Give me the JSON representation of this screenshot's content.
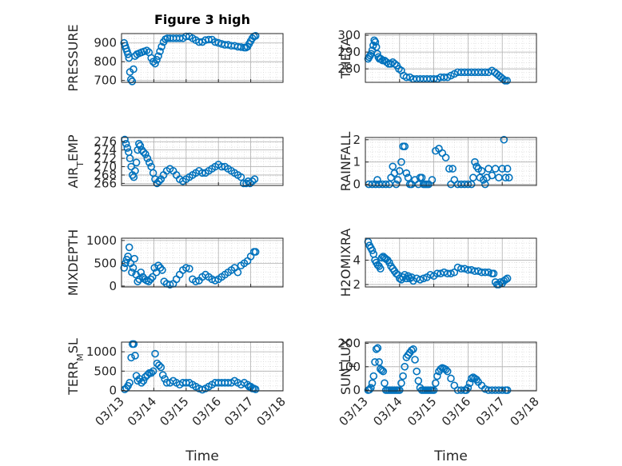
{
  "figure": {
    "title": "Figure 3 high",
    "xlabel_left": "Time",
    "xlabel_right": "Time",
    "x_ticks": [
      "03/13",
      "03/14",
      "03/15",
      "03/16",
      "03/17",
      "03/18"
    ],
    "marker_color": "#0072BD",
    "grid_color": "#b0b0b0"
  },
  "chart_data": [
    {
      "type": "scatter",
      "ylabel": "PRESSURE",
      "ylim": [
        690,
        950
      ],
      "yticks": [
        "700",
        "800",
        "900"
      ],
      "ytick_values": [
        700,
        800,
        900
      ],
      "xlim": [
        0,
        5
      ],
      "grid": true,
      "x": [
        0.08,
        0.11,
        0.14,
        0.17,
        0.2,
        0.23,
        0.26,
        0.29,
        0.33,
        0.37,
        0.42,
        0.48,
        0.55,
        0.62,
        0.7,
        0.78,
        0.85,
        0.92,
        0.98,
        1.04,
        1.09,
        1.14,
        1.19,
        1.24,
        1.3,
        1.36,
        1.42,
        1.5,
        1.6,
        1.7,
        1.8,
        1.9,
        2.0,
        2.1,
        2.2,
        2.3,
        2.4,
        2.5,
        2.6,
        2.7,
        2.8,
        2.9,
        3.0,
        3.1,
        3.2,
        3.3,
        3.4,
        3.5,
        3.6,
        3.7,
        3.8,
        3.85,
        3.9,
        3.95,
        4.0,
        4.05,
        4.1,
        4.15
      ],
      "y": [
        900,
        885,
        870,
        855,
        840,
        820,
        745,
        705,
        695,
        760,
        830,
        840,
        845,
        850,
        855,
        860,
        850,
        820,
        800,
        790,
        810,
        830,
        855,
        880,
        905,
        920,
        925,
        925,
        925,
        925,
        925,
        925,
        935,
        935,
        925,
        915,
        905,
        905,
        915,
        918,
        918,
        905,
        900,
        895,
        890,
        890,
        885,
        885,
        880,
        878,
        875,
        875,
        880,
        895,
        910,
        925,
        935,
        938
      ]
    },
    {
      "type": "scatter",
      "ylabel": "THETA",
      "ylim": [
        272,
        301
      ],
      "yticks": [
        "280",
        "290",
        "300"
      ],
      "ytick_values": [
        280,
        290,
        300
      ],
      "xlim": [
        0,
        5
      ],
      "grid": true,
      "x": [
        0.08,
        0.11,
        0.14,
        0.17,
        0.2,
        0.23,
        0.26,
        0.29,
        0.32,
        0.35,
        0.38,
        0.41,
        0.45,
        0.5,
        0.56,
        0.62,
        0.68,
        0.74,
        0.8,
        0.86,
        0.92,
        0.98,
        1.05,
        1.12,
        1.2,
        1.3,
        1.4,
        1.5,
        1.6,
        1.7,
        1.8,
        1.9,
        2.0,
        2.1,
        2.2,
        2.3,
        2.4,
        2.5,
        2.6,
        2.7,
        2.8,
        2.9,
        3.0,
        3.1,
        3.2,
        3.3,
        3.4,
        3.5,
        3.6,
        3.7,
        3.78,
        3.84,
        3.9,
        3.96,
        4.02,
        4.08,
        4.14
      ],
      "y": [
        286,
        287,
        288,
        289,
        291,
        294,
        297,
        296,
        293,
        289,
        287,
        286,
        286,
        285,
        285,
        284,
        283,
        283,
        284,
        283,
        282,
        280,
        279,
        276,
        275,
        275,
        274,
        274,
        274,
        274,
        274,
        274,
        274,
        274,
        275,
        275,
        275,
        276,
        277,
        278,
        278,
        278,
        278,
        278,
        278,
        278,
        278,
        278,
        278,
        279,
        278,
        277,
        276,
        275,
        274,
        273,
        273
      ]
    },
    {
      "type": "scatter",
      "ylabel": "AIR_TEMP",
      "ylim": [
        265.5,
        277
      ],
      "yticks": [
        "266",
        "268",
        "270",
        "272",
        "274",
        "276"
      ],
      "ytick_values": [
        266,
        268,
        270,
        272,
        274,
        276
      ],
      "xlim": [
        0,
        5
      ],
      "grid": true,
      "x": [
        0.1,
        0.14,
        0.18,
        0.22,
        0.26,
        0.3,
        0.34,
        0.38,
        0.42,
        0.46,
        0.5,
        0.54,
        0.58,
        0.63,
        0.68,
        0.74,
        0.8,
        0.86,
        0.92,
        0.98,
        1.04,
        1.1,
        1.16,
        1.22,
        1.3,
        1.4,
        1.5,
        1.6,
        1.7,
        1.8,
        1.9,
        2.0,
        2.1,
        2.2,
        2.3,
        2.4,
        2.5,
        2.6,
        2.7,
        2.8,
        2.9,
        3.0,
        3.1,
        3.2,
        3.3,
        3.4,
        3.5,
        3.6,
        3.7,
        3.78,
        3.86,
        3.92,
        3.98,
        4.05,
        4.12
      ],
      "y": [
        276.5,
        275.5,
        274.5,
        273.5,
        272,
        270,
        268,
        267.5,
        269,
        271,
        274,
        275.5,
        275,
        274,
        273.5,
        273,
        272,
        271,
        270,
        268.5,
        267,
        266,
        266.5,
        267,
        268,
        269,
        269.5,
        269,
        268,
        267,
        266.5,
        267,
        267.5,
        268,
        268.5,
        269,
        268.5,
        268.5,
        269,
        269.5,
        270,
        270.5,
        270,
        270,
        269.5,
        269,
        268.5,
        268,
        267.5,
        266,
        266,
        266.5,
        266,
        266.5,
        267
      ]
    },
    {
      "type": "scatter",
      "ylabel": "RAINFALL",
      "ylim": [
        -0.05,
        2.1
      ],
      "yticks": [
        "0",
        "1",
        "2"
      ],
      "ytick_values": [
        0,
        1,
        2
      ],
      "xlim": [
        0,
        5
      ],
      "grid": true,
      "x": [
        0.1,
        0.2,
        0.3,
        0.35,
        0.4,
        0.5,
        0.6,
        0.7,
        0.75,
        0.8,
        0.85,
        0.9,
        0.95,
        1.0,
        1.05,
        1.1,
        1.15,
        1.2,
        1.25,
        1.3,
        1.35,
        1.45,
        1.55,
        1.6,
        1.65,
        1.7,
        1.75,
        1.8,
        1.85,
        1.95,
        2.05,
        2.15,
        2.25,
        2.35,
        2.45,
        2.5,
        2.55,
        2.6,
        2.7,
        2.8,
        2.9,
        3.0,
        3.1,
        3.15,
        3.2,
        3.25,
        3.3,
        3.35,
        3.4,
        3.45,
        3.5,
        3.55,
        3.6,
        3.7,
        3.8,
        3.9,
        4.0,
        4.05,
        4.1,
        4.15,
        4.2
      ],
      "y": [
        0,
        0,
        0,
        0.2,
        0,
        0,
        0,
        0,
        0.3,
        0.8,
        0.5,
        0,
        0.2,
        0.6,
        1.0,
        1.7,
        1.7,
        0.5,
        0.3,
        0,
        0,
        0.2,
        0,
        0.3,
        0.3,
        0,
        0,
        0,
        0,
        0.2,
        1.5,
        1.6,
        1.4,
        1.2,
        0.7,
        0,
        0.7,
        0.2,
        0,
        0,
        0,
        0,
        0,
        0.3,
        1.0,
        0.8,
        0.7,
        0.3,
        0.6,
        0.2,
        0,
        0.3,
        0.7,
        0.4,
        0.7,
        0.3,
        0.7,
        2.0,
        0.3,
        0.7,
        0.3
      ]
    },
    {
      "type": "scatter",
      "ylabel": "MIXDEPTH",
      "ylim": [
        -20,
        1050
      ],
      "yticks": [
        "0",
        "500",
        "1000"
      ],
      "ytick_values": [
        0,
        500,
        1000
      ],
      "xlim": [
        0,
        5
      ],
      "grid": true,
      "x": [
        0.08,
        0.12,
        0.16,
        0.2,
        0.24,
        0.28,
        0.32,
        0.36,
        0.4,
        0.45,
        0.5,
        0.55,
        0.6,
        0.66,
        0.72,
        0.78,
        0.84,
        0.9,
        0.96,
        1.02,
        1.08,
        1.14,
        1.2,
        1.26,
        1.32,
        1.4,
        1.5,
        1.6,
        1.7,
        1.8,
        1.9,
        2.0,
        2.1,
        2.2,
        2.3,
        2.4,
        2.5,
        2.6,
        2.7,
        2.8,
        2.9,
        3.0,
        3.1,
        3.2,
        3.3,
        3.4,
        3.5,
        3.6,
        3.7,
        3.8,
        3.9,
        4.0,
        4.1,
        4.15
      ],
      "y": [
        400,
        500,
        580,
        650,
        850,
        500,
        300,
        400,
        600,
        250,
        100,
        150,
        300,
        200,
        150,
        120,
        100,
        150,
        200,
        400,
        300,
        450,
        400,
        350,
        100,
        50,
        30,
        50,
        150,
        250,
        350,
        400,
        380,
        150,
        100,
        120,
        200,
        250,
        200,
        150,
        120,
        150,
        200,
        250,
        300,
        350,
        400,
        300,
        450,
        500,
        550,
        650,
        750,
        750
      ]
    },
    {
      "type": "scatter",
      "ylabel": "H2OMIXRA",
      "ylim": [
        1.8,
        5.8
      ],
      "yticks": [
        "2",
        "4"
      ],
      "ytick_values": [
        2,
        4
      ],
      "xlim": [
        0,
        5
      ],
      "grid": true,
      "x": [
        0.08,
        0.12,
        0.16,
        0.2,
        0.24,
        0.28,
        0.32,
        0.36,
        0.4,
        0.44,
        0.48,
        0.52,
        0.56,
        0.6,
        0.65,
        0.7,
        0.75,
        0.8,
        0.85,
        0.9,
        0.95,
        1.0,
        1.05,
        1.1,
        1.15,
        1.2,
        1.25,
        1.3,
        1.35,
        1.4,
        1.5,
        1.6,
        1.7,
        1.8,
        1.9,
        2.0,
        2.1,
        2.2,
        2.3,
        2.4,
        2.5,
        2.6,
        2.7,
        2.8,
        2.9,
        3.0,
        3.1,
        3.2,
        3.3,
        3.4,
        3.5,
        3.6,
        3.7,
        3.75,
        3.8,
        3.85,
        3.9,
        3.95,
        4.0,
        4.05,
        4.1,
        4.15
      ],
      "y": [
        5.5,
        5.2,
        5.0,
        4.8,
        4.5,
        4.0,
        3.8,
        3.6,
        3.5,
        3.3,
        4.2,
        4.3,
        4.2,
        4.1,
        4.0,
        3.8,
        3.5,
        3.3,
        3.1,
        2.9,
        2.8,
        2.5,
        2.4,
        2.6,
        2.8,
        2.5,
        2.7,
        2.5,
        2.6,
        2.3,
        2.5,
        2.4,
        2.5,
        2.6,
        2.8,
        2.7,
        2.9,
        2.9,
        3.0,
        2.9,
        2.9,
        3.0,
        3.4,
        3.3,
        3.3,
        3.2,
        3.2,
        3.1,
        3.1,
        3.0,
        3.0,
        3.0,
        2.9,
        2.9,
        2.2,
        2.0,
        2.0,
        2.2,
        2.1,
        2.3,
        2.4,
        2.5
      ]
    },
    {
      "type": "scatter",
      "ylabel": "TERR_MSL",
      "ylim": [
        -10,
        1250
      ],
      "yticks": [
        "0",
        "500",
        "1000"
      ],
      "ytick_values": [
        0,
        500,
        1000
      ],
      "xlim": [
        0,
        5
      ],
      "grid": true,
      "x": [
        0.1,
        0.15,
        0.2,
        0.25,
        0.3,
        0.34,
        0.38,
        0.42,
        0.46,
        0.5,
        0.56,
        0.62,
        0.68,
        0.74,
        0.8,
        0.86,
        0.92,
        0.98,
        1.04,
        1.1,
        1.16,
        1.22,
        1.28,
        1.34,
        1.4,
        1.5,
        1.6,
        1.7,
        1.8,
        1.9,
        2.0,
        2.1,
        2.2,
        2.3,
        2.4,
        2.5,
        2.6,
        2.7,
        2.8,
        2.9,
        3.0,
        3.1,
        3.2,
        3.3,
        3.4,
        3.5,
        3.6,
        3.7,
        3.8,
        3.9,
        3.95,
        4.0,
        4.05,
        4.1,
        4.15
      ],
      "y": [
        30,
        60,
        120,
        200,
        850,
        1200,
        1200,
        900,
        380,
        250,
        300,
        200,
        250,
        350,
        400,
        450,
        450,
        500,
        950,
        700,
        650,
        600,
        400,
        300,
        200,
        200,
        250,
        200,
        150,
        200,
        200,
        200,
        150,
        100,
        50,
        20,
        50,
        100,
        150,
        200,
        200,
        200,
        200,
        200,
        200,
        250,
        200,
        150,
        200,
        150,
        100,
        100,
        50,
        50,
        30
      ]
    },
    {
      "type": "scatter",
      "ylabel": "SUN_FLUX",
      "ylim": [
        -3,
        205
      ],
      "yticks": [
        "0",
        "100",
        "200"
      ],
      "ytick_values": [
        0,
        100,
        200
      ],
      "xlim": [
        0,
        5
      ],
      "grid": true,
      "x": [
        0.08,
        0.12,
        0.16,
        0.2,
        0.24,
        0.28,
        0.32,
        0.36,
        0.4,
        0.44,
        0.48,
        0.52,
        0.56,
        0.6,
        0.65,
        0.7,
        0.75,
        0.8,
        0.85,
        0.9,
        0.95,
        1.0,
        1.05,
        1.1,
        1.15,
        1.2,
        1.25,
        1.3,
        1.35,
        1.4,
        1.45,
        1.5,
        1.55,
        1.6,
        1.65,
        1.7,
        1.75,
        1.8,
        1.85,
        1.9,
        1.95,
        2.0,
        2.05,
        2.1,
        2.15,
        2.2,
        2.25,
        2.3,
        2.35,
        2.4,
        2.5,
        2.6,
        2.7,
        2.8,
        2.9,
        2.95,
        3.0,
        3.05,
        3.1,
        3.15,
        3.2,
        3.25,
        3.3,
        3.4,
        3.5,
        3.6,
        3.7,
        3.8,
        3.9,
        4.0,
        4.1,
        4.15
      ],
      "y": [
        0,
        2,
        10,
        30,
        60,
        120,
        175,
        180,
        120,
        90,
        85,
        80,
        30,
        0,
        0,
        0,
        0,
        0,
        0,
        0,
        0,
        0,
        30,
        60,
        100,
        140,
        150,
        160,
        170,
        175,
        130,
        80,
        40,
        10,
        0,
        0,
        0,
        0,
        0,
        0,
        0,
        0,
        30,
        60,
        80,
        90,
        95,
        92,
        88,
        80,
        50,
        20,
        0,
        0,
        0,
        0,
        10,
        30,
        50,
        55,
        50,
        45,
        35,
        20,
        5,
        0,
        0,
        0,
        0,
        0,
        0,
        0
      ]
    }
  ]
}
